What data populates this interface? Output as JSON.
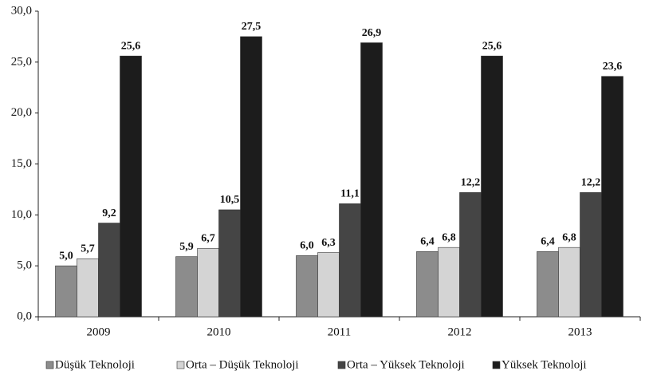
{
  "chart_data": {
    "type": "bar",
    "categories": [
      "2009",
      "2010",
      "2011",
      "2012",
      "2013"
    ],
    "series": [
      {
        "name": "Düşük Teknoloji",
        "color": "#8c8c8c",
        "values": [
          5.0,
          5.9,
          6.0,
          6.4,
          6.4
        ],
        "value_labels": [
          "5,0",
          "5,9",
          "6,0",
          "6,4",
          "6,4"
        ]
      },
      {
        "name": "Orta – Düşük Teknoloji",
        "color": "#d4d4d4",
        "values": [
          5.7,
          6.7,
          6.3,
          6.8,
          6.8
        ],
        "value_labels": [
          "5,7",
          "6,7",
          "6,3",
          "6,8",
          "6,8"
        ]
      },
      {
        "name": "Orta – Yüksek Teknoloji",
        "color": "#454545",
        "values": [
          9.2,
          10.5,
          11.1,
          12.2,
          12.2
        ],
        "value_labels": [
          "9,2",
          "10,5",
          "11,1",
          "12,2",
          "12,2"
        ]
      },
      {
        "name": "Yüksek Teknoloji",
        "color": "#1c1c1c",
        "values": [
          25.6,
          27.5,
          26.9,
          25.6,
          23.6
        ],
        "value_labels": [
          "25,6",
          "27,5",
          "26,9",
          "25,6",
          "23,6"
        ]
      }
    ],
    "ylim": [
      0,
      30
    ],
    "yticks": [
      {
        "value": 0,
        "label": "0,0"
      },
      {
        "value": 5,
        "label": "5,0"
      },
      {
        "value": 10,
        "label": "10,0"
      },
      {
        "value": 15,
        "label": "15,0"
      },
      {
        "value": 20,
        "label": "20,0"
      },
      {
        "value": 25,
        "label": "25,0"
      },
      {
        "value": 30,
        "label": "30,0"
      }
    ],
    "grid": false,
    "legend": "bottom"
  }
}
